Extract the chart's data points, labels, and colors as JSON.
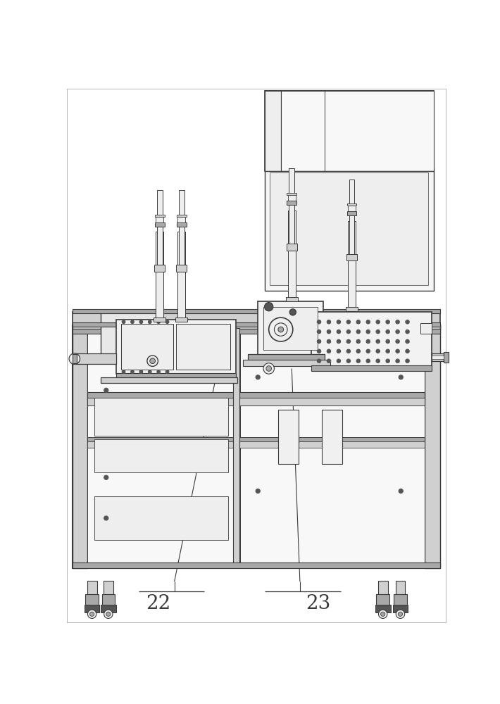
{
  "bg": "#ffffff",
  "lc": "#3a3a3a",
  "lg": "#d0d0d0",
  "mg": "#a8a8a8",
  "dg": "#555555",
  "vlg": "#eeeeee",
  "label_fontsize": 20,
  "border_lw": 0.6
}
